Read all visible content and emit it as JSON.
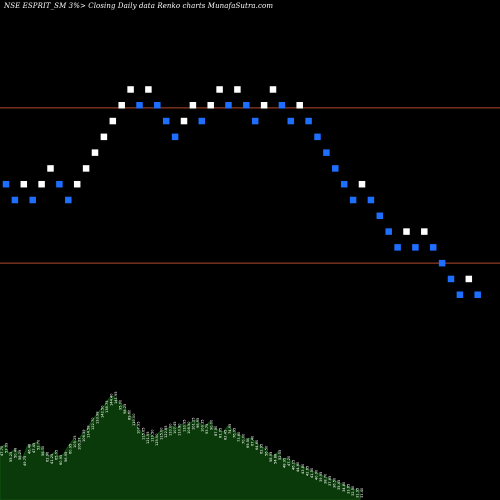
{
  "chart_data": {
    "type": "renko",
    "title": "NSE ESPRIT_SM 3%>  Closing Daily data  Renko  charts MunafaSutra.com",
    "colors": {
      "background": "#000000",
      "up_brick": "#ffffff",
      "down_brick": "#1e6fff",
      "reference_line": "#b04a2a",
      "volume_fill": "#0a3a0a",
      "volume_outline": "#155a15",
      "volume_label": "#ffffff"
    },
    "reference_lines": [
      114.5,
      85
    ],
    "ylim": [
      40,
      135
    ],
    "bricks": [
      {
        "dir": "down",
        "price": 100
      },
      {
        "dir": "down",
        "price": 97
      },
      {
        "dir": "up",
        "price": 100
      },
      {
        "dir": "down",
        "price": 97
      },
      {
        "dir": "up",
        "price": 100
      },
      {
        "dir": "up",
        "price": 103
      },
      {
        "dir": "down",
        "price": 100
      },
      {
        "dir": "down",
        "price": 97
      },
      {
        "dir": "up",
        "price": 100
      },
      {
        "dir": "up",
        "price": 103
      },
      {
        "dir": "up",
        "price": 106
      },
      {
        "dir": "up",
        "price": 109
      },
      {
        "dir": "up",
        "price": 112
      },
      {
        "dir": "up",
        "price": 115
      },
      {
        "dir": "up",
        "price": 118
      },
      {
        "dir": "down",
        "price": 115
      },
      {
        "dir": "up",
        "price": 118
      },
      {
        "dir": "down",
        "price": 115
      },
      {
        "dir": "down",
        "price": 112
      },
      {
        "dir": "down",
        "price": 109
      },
      {
        "dir": "up",
        "price": 112
      },
      {
        "dir": "up",
        "price": 115
      },
      {
        "dir": "down",
        "price": 112
      },
      {
        "dir": "up",
        "price": 115
      },
      {
        "dir": "up",
        "price": 118
      },
      {
        "dir": "down",
        "price": 115
      },
      {
        "dir": "up",
        "price": 118
      },
      {
        "dir": "down",
        "price": 115
      },
      {
        "dir": "down",
        "price": 112
      },
      {
        "dir": "up",
        "price": 115
      },
      {
        "dir": "up",
        "price": 118
      },
      {
        "dir": "down",
        "price": 115
      },
      {
        "dir": "down",
        "price": 112
      },
      {
        "dir": "up",
        "price": 115
      },
      {
        "dir": "down",
        "price": 112
      },
      {
        "dir": "down",
        "price": 109
      },
      {
        "dir": "down",
        "price": 106
      },
      {
        "dir": "down",
        "price": 103
      },
      {
        "dir": "down",
        "price": 100
      },
      {
        "dir": "down",
        "price": 97
      },
      {
        "dir": "up",
        "price": 100
      },
      {
        "dir": "down",
        "price": 97
      },
      {
        "dir": "down",
        "price": 94
      },
      {
        "dir": "down",
        "price": 91
      },
      {
        "dir": "down",
        "price": 88
      },
      {
        "dir": "up",
        "price": 91
      },
      {
        "dir": "down",
        "price": 88
      },
      {
        "dir": "up",
        "price": 91
      },
      {
        "dir": "down",
        "price": 88
      },
      {
        "dir": "down",
        "price": 85
      },
      {
        "dir": "down",
        "price": 82
      },
      {
        "dir": "down",
        "price": 79
      },
      {
        "dir": "up",
        "price": 82
      },
      {
        "dir": "down",
        "price": 79
      }
    ],
    "volume_area": [
      52,
      55,
      46,
      50,
      48,
      42,
      54,
      55,
      58,
      52,
      46,
      44,
      48,
      43,
      46,
      54,
      60,
      58,
      66,
      70,
      78,
      84,
      90,
      95,
      102,
      104,
      98,
      94,
      88,
      82,
      74,
      68,
      64,
      66,
      62,
      68,
      70,
      72,
      74,
      72,
      76,
      74,
      78,
      80,
      76,
      74,
      78,
      72,
      70,
      68,
      74,
      70,
      66,
      64,
      60,
      62,
      58,
      54,
      52,
      46,
      44,
      48,
      40,
      42,
      38,
      36,
      34,
      32,
      30,
      28,
      26,
      24,
      22,
      20,
      18,
      16,
      14,
      12,
      10,
      10
    ],
    "volume_labels": [
      "47.70",
      "53.69",
      "55.25",
      "50.48",
      "58.29",
      "49.75",
      "46.48",
      "47.45",
      "52.70",
      "58.30",
      "62.96",
      "41.25",
      "65.95",
      "60.95",
      "56.95",
      "60.95",
      "105.25",
      "106.27",
      "106.39",
      "114.58",
      "122.70",
      "133.98",
      "142.50",
      "138.75",
      "144.40",
      "141.95",
      "95.00",
      "98.25",
      "89.60",
      "110.00",
      "107.95",
      "115.65",
      "121.95",
      "119.50",
      "125.00",
      "115.00",
      "122.85",
      "110.00",
      "107.45",
      "110.80",
      "110.95",
      "108.50",
      "101.25",
      "96.95",
      "100.35",
      "93.75",
      "90.00",
      "87.50",
      "81.05",
      "82.45",
      "74.95",
      "76.95",
      "73.60",
      "70.00",
      "69.50",
      "67.40",
      "64.60",
      "62.95",
      "56.50",
      "58.95",
      "54.88",
      "52.55",
      "48.95",
      "47.20",
      "46.15",
      "44.60",
      "43.80",
      "42.65",
      "41.50",
      "40.90",
      "39.95",
      "38.70",
      "37.65",
      "36.50",
      "35.45",
      "34.80",
      "33.65",
      "32.50",
      "31.95",
      "31.40"
    ]
  }
}
